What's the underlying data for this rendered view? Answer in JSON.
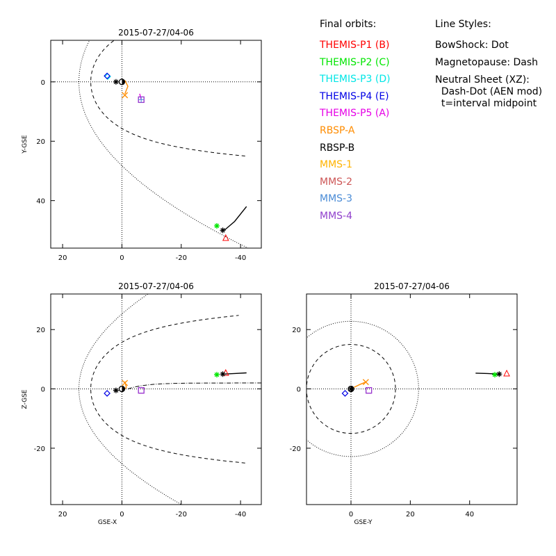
{
  "legend": {
    "title": "Final orbits:",
    "items": [
      {
        "label": "THEMIS-P1 (B)",
        "color": "#ff0000"
      },
      {
        "label": "THEMIS-P2 (C)",
        "color": "#00e600"
      },
      {
        "label": "THEMIS-P3 (D)",
        "color": "#00e6e6"
      },
      {
        "label": "THEMIS-P4 (E)",
        "color": "#0000e6"
      },
      {
        "label": "THEMIS-P5 (A)",
        "color": "#e600e6"
      },
      {
        "label": "RBSP-A",
        "color": "#ff8c00"
      },
      {
        "label": "RBSP-B",
        "color": "#000000"
      },
      {
        "label": "MMS-1",
        "color": "#ffb300"
      },
      {
        "label": "MMS-2",
        "color": "#cc5555"
      },
      {
        "label": "MMS-3",
        "color": "#4a8bd6"
      },
      {
        "label": "MMS-4",
        "color": "#9040cc"
      }
    ]
  },
  "line_styles": {
    "title": "Line Styles:",
    "lines": [
      "BowShock: Dot",
      "Magnetopause: Dash",
      "Neutral Sheet (XZ):",
      "  Dash-Dot (AEN mod)",
      "  t=interval midpoint"
    ]
  },
  "chart_data": [
    {
      "type": "scatter",
      "panel": "XY",
      "title": "2015-07-27/04-06",
      "xlabel": "",
      "ylabel": "Y-GSE",
      "xlim": [
        24,
        -47
      ],
      "ylim": [
        -14,
        56
      ],
      "x_reversed": true,
      "y_reversed": true,
      "xticks": [
        20,
        0,
        -20,
        -40
      ],
      "xtick_labels": [
        "20",
        "0",
        "-20",
        "-40"
      ],
      "yticks": [
        0,
        20,
        40
      ],
      "ytick_labels": [
        "0",
        "20",
        "40"
      ],
      "tracks": [
        {
          "name": "RBSP-B",
          "color": "#000000",
          "points": [
            [
              -34.5,
              50
            ],
            [
              -38,
              47
            ],
            [
              -42,
              42
            ]
          ]
        },
        {
          "name": "RBSP-A",
          "color": "#ff8c00",
          "points": [
            [
              -1,
              4
            ],
            [
              -2,
              1.5
            ],
            [
              -1,
              -0.5
            ]
          ]
        },
        {
          "name": "THEMIS-P5 (A)",
          "color": "#e600e6",
          "points": [
            [
              -6.5,
              6
            ],
            [
              -6,
              4
            ]
          ]
        }
      ],
      "markers": [
        {
          "name": "THEMIS-P1 (B)",
          "x": -35,
          "y": 52.5,
          "symbol": "triangle",
          "color": "#ff0000"
        },
        {
          "name": "THEMIS-P2 (C)",
          "x": -32,
          "y": 48.5,
          "symbol": "asterisk",
          "color": "#00e600"
        },
        {
          "name": "RBSP-B",
          "x": -34,
          "y": 50,
          "symbol": "asterisk",
          "color": "#000000"
        },
        {
          "name": "THEMIS-P3 (D)",
          "x": 4.8,
          "y": -1.8,
          "symbol": "diamond",
          "color": "#00e6e6"
        },
        {
          "name": "THEMIS-P4 (E)",
          "x": 5,
          "y": -2,
          "symbol": "diamond",
          "color": "#0000e6"
        },
        {
          "name": "THEMIS-P5 (A)",
          "x": -6.5,
          "y": 6,
          "symbol": "square",
          "color": "#e600e6"
        },
        {
          "name": "MMS-4",
          "x": -6.5,
          "y": 6,
          "symbol": "square",
          "color": "#9040cc"
        },
        {
          "name": "MMS-3",
          "x": -6.5,
          "y": 6,
          "symbol": "plus",
          "color": "#4a8bd6"
        },
        {
          "name": "RBSP-A",
          "x": -1,
          "y": 4.5,
          "symbol": "x",
          "color": "#ff8c00"
        },
        {
          "name": "RBSP-B-near",
          "x": 2,
          "y": 0,
          "symbol": "asterisk",
          "color": "#000000"
        }
      ]
    },
    {
      "type": "scatter",
      "panel": "XZ",
      "title": "2015-07-27/04-06",
      "xlabel": "GSE-X",
      "ylabel": "Z-GSE",
      "xlim": [
        24,
        -47
      ],
      "ylim": [
        -39,
        32
      ],
      "x_reversed": true,
      "y_reversed": false,
      "xticks": [
        20,
        0,
        -20,
        -40
      ],
      "xtick_labels": [
        "20",
        "0",
        "-20",
        "-40"
      ],
      "yticks": [
        20,
        0,
        -20
      ],
      "ytick_labels": [
        "20",
        "0",
        "-20"
      ],
      "tracks": [
        {
          "name": "RBSP-B",
          "color": "#000000",
          "points": [
            [
              -34.5,
              5
            ],
            [
              -38,
              5.2
            ],
            [
              -42,
              5.4
            ]
          ]
        },
        {
          "name": "RBSP-A",
          "color": "#ff8c00",
          "points": [
            [
              -1,
              2.5
            ],
            [
              -1.5,
              0.5
            ],
            [
              -0.5,
              -0.3
            ]
          ]
        }
      ],
      "markers": [
        {
          "name": "THEMIS-P1 (B)",
          "x": -35,
          "y": 5.5,
          "symbol": "triangle",
          "color": "#ff0000"
        },
        {
          "name": "THEMIS-P2 (C)",
          "x": -32,
          "y": 4.8,
          "symbol": "asterisk",
          "color": "#00e600"
        },
        {
          "name": "RBSP-B",
          "x": -34,
          "y": 5,
          "symbol": "asterisk",
          "color": "#000000"
        },
        {
          "name": "THEMIS-P4 (E)",
          "x": 5,
          "y": -1.5,
          "symbol": "diamond",
          "color": "#0000e6"
        },
        {
          "name": "THEMIS-P5 (A)",
          "x": -6.5,
          "y": -0.5,
          "symbol": "square",
          "color": "#e600e6"
        },
        {
          "name": "MMS-4",
          "x": -6.5,
          "y": -0.5,
          "symbol": "square",
          "color": "#9040cc"
        },
        {
          "name": "RBSP-A",
          "x": -1,
          "y": 2,
          "symbol": "x",
          "color": "#ff8c00"
        },
        {
          "name": "RBSP-B-near",
          "x": 2,
          "y": -0.5,
          "symbol": "asterisk",
          "color": "#000000"
        }
      ]
    },
    {
      "type": "scatter",
      "panel": "YZ",
      "title": "2015-07-27/04-06",
      "xlabel": "GSE-Y",
      "ylabel": "",
      "xlim": [
        -15,
        56
      ],
      "ylim": [
        -39,
        32
      ],
      "x_reversed": false,
      "y_reversed": false,
      "xticks": [
        0,
        20,
        40
      ],
      "xtick_labels": [
        "0",
        "20",
        "40"
      ],
      "yticks": [
        20,
        0,
        -20
      ],
      "ytick_labels": [
        "20",
        "0",
        "-20"
      ],
      "tracks": [
        {
          "name": "RBSP-B",
          "color": "#000000",
          "points": [
            [
              49.5,
              5
            ],
            [
              46,
              5.2
            ],
            [
              42,
              5.3
            ]
          ]
        },
        {
          "name": "RBSP-A",
          "color": "#ff8c00",
          "points": [
            [
              1,
              0.5
            ],
            [
              3,
              1.5
            ],
            [
              5,
              2.3
            ]
          ]
        }
      ],
      "markers": [
        {
          "name": "THEMIS-P1 (B)",
          "x": 52.5,
          "y": 5.3,
          "symbol": "triangle",
          "color": "#ff0000"
        },
        {
          "name": "THEMIS-P2 (C)",
          "x": 48.5,
          "y": 4.8,
          "symbol": "asterisk",
          "color": "#00e600"
        },
        {
          "name": "RBSP-B",
          "x": 50,
          "y": 5,
          "symbol": "asterisk",
          "color": "#000000"
        },
        {
          "name": "THEMIS-P4 (E)",
          "x": -2,
          "y": -1.5,
          "symbol": "diamond",
          "color": "#0000e6"
        },
        {
          "name": "THEMIS-P5 (A)",
          "x": 6,
          "y": -0.5,
          "symbol": "square",
          "color": "#e600e6"
        },
        {
          "name": "MMS-4",
          "x": 6,
          "y": -0.5,
          "symbol": "square",
          "color": "#9040cc"
        },
        {
          "name": "RBSP-A",
          "x": 5,
          "y": 2.3,
          "symbol": "x",
          "color": "#ff8c00"
        },
        {
          "name": "RBSP-B-near",
          "x": 0,
          "y": 0,
          "symbol": "asterisk",
          "color": "#000000"
        }
      ]
    }
  ]
}
